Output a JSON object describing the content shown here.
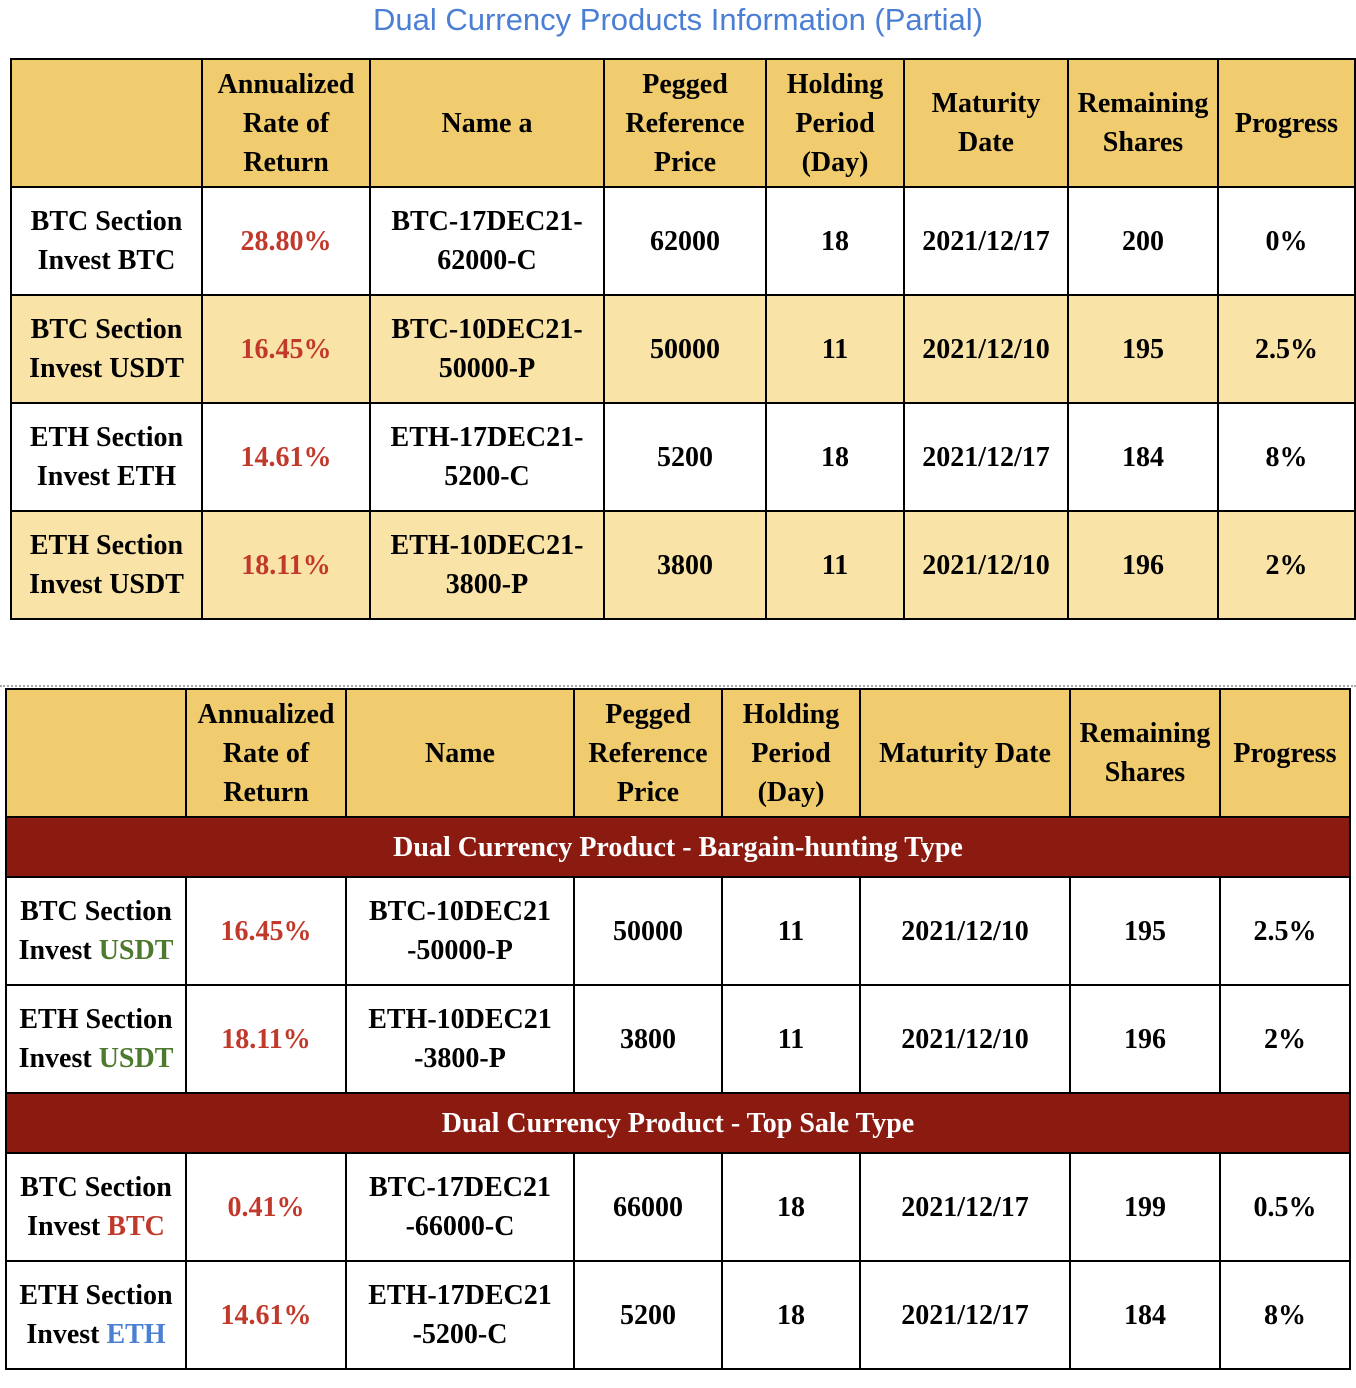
{
  "title": "Dual Currency Products Information (Partial)",
  "table1": {
    "header": [
      "Annualized Rate of Return",
      "Name a",
      "Pegged Reference Price",
      "Holding Period (Day)",
      "Maturity Date",
      "Remaining Shares",
      "Progress"
    ],
    "rows": [
      {
        "product": [
          "BTC Section",
          "Invest BTC"
        ],
        "rate": "28.80%",
        "name": [
          "BTC-17DEC21-",
          "62000-C"
        ],
        "price": "62000",
        "period": "18",
        "maturity": "2021/12/17",
        "shares": "200",
        "progress": "0%"
      },
      {
        "product": [
          "BTC Section",
          "Invest USDT"
        ],
        "rate": "16.45%",
        "name": [
          "BTC-10DEC21-",
          "50000-P"
        ],
        "price": "50000",
        "period": "11",
        "maturity": "2021/12/10",
        "shares": "195",
        "progress": "2.5%"
      },
      {
        "product": [
          "ETH Section",
          "Invest ETH"
        ],
        "rate": "14.61%",
        "name": [
          "ETH-17DEC21-",
          "5200-C"
        ],
        "price": "5200",
        "period": "18",
        "maturity": "2021/12/17",
        "shares": "184",
        "progress": "8%"
      },
      {
        "product": [
          "ETH Section",
          "Invest USDT"
        ],
        "rate": "18.11%",
        "name": [
          "ETH-10DEC21-",
          "3800-P"
        ],
        "price": "3800",
        "period": "11",
        "maturity": "2021/12/10",
        "shares": "196",
        "progress": "2%"
      }
    ]
  },
  "table2": {
    "header": [
      "Annualized Rate of Return",
      "Name",
      "Pegged Reference Price",
      "Holding Period (Day)",
      "Maturity Date",
      "Remaining Shares",
      "Progress"
    ],
    "groups": [
      {
        "title": "Dual Currency Product - Bargain-hunting Type",
        "rows": [
          {
            "section": "BTC Section",
            "invest": "Invest",
            "currency": "USDT",
            "currency_color": "#4e7a2e",
            "rate": "16.45%",
            "name": [
              "BTC-10DEC21",
              "-50000-P"
            ],
            "price": "50000",
            "period": "11",
            "maturity": "2021/12/10",
            "shares": "195",
            "progress": "2.5%"
          },
          {
            "section": "ETH Section",
            "invest": "Invest",
            "currency": "USDT",
            "currency_color": "#4e7a2e",
            "rate": "18.11%",
            "name": [
              "ETH-10DEC21",
              "-3800-P"
            ],
            "price": "3800",
            "period": "11",
            "maturity": "2021/12/10",
            "shares": "196",
            "progress": "2%"
          }
        ]
      },
      {
        "title": "Dual Currency Product - Top Sale Type",
        "rows": [
          {
            "section": "BTC Section",
            "invest": "Invest",
            "currency": "BTC",
            "currency_color": "#c0392b",
            "rate": "0.41%",
            "name": [
              "BTC-17DEC21",
              "-66000-C"
            ],
            "price": "66000",
            "period": "18",
            "maturity": "2021/12/17",
            "shares": "199",
            "progress": "0.5%"
          },
          {
            "section": "ETH Section",
            "invest": "Invest",
            "currency": "ETH",
            "currency_color": "#4a7fd4",
            "rate": "14.61%",
            "name": [
              "ETH-17DEC21",
              "-5200-C"
            ],
            "price": "5200",
            "period": "18",
            "maturity": "2021/12/17",
            "shares": "184",
            "progress": "8%"
          }
        ]
      }
    ]
  }
}
